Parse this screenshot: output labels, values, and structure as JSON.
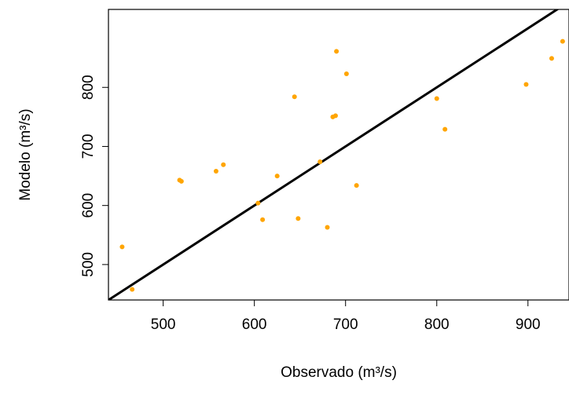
{
  "chart_data": {
    "type": "scatter",
    "title": "",
    "xlabel": "Observado (m³/s)",
    "ylabel": "Modelo (m³/s)",
    "xlim": [
      440,
      945
    ],
    "ylim": [
      440,
      932
    ],
    "x_ticks": [
      500,
      600,
      700,
      800,
      900
    ],
    "y_ticks": [
      500,
      600,
      700,
      800
    ],
    "grid": false,
    "legend": "none",
    "point_color": "#ffa500",
    "line_color": "#000000",
    "reference_line": {
      "slope": 1,
      "intercept": 0
    },
    "points": [
      {
        "x": 455,
        "y": 530
      },
      {
        "x": 466,
        "y": 458
      },
      {
        "x": 518,
        "y": 643
      },
      {
        "x": 520,
        "y": 641
      },
      {
        "x": 558,
        "y": 658
      },
      {
        "x": 566,
        "y": 669
      },
      {
        "x": 604,
        "y": 604
      },
      {
        "x": 609,
        "y": 576
      },
      {
        "x": 625,
        "y": 650
      },
      {
        "x": 644,
        "y": 784
      },
      {
        "x": 648,
        "y": 578
      },
      {
        "x": 672,
        "y": 674
      },
      {
        "x": 680,
        "y": 563
      },
      {
        "x": 686,
        "y": 750
      },
      {
        "x": 689,
        "y": 752
      },
      {
        "x": 690,
        "y": 861
      },
      {
        "x": 701,
        "y": 823
      },
      {
        "x": 712,
        "y": 634
      },
      {
        "x": 800,
        "y": 781
      },
      {
        "x": 809,
        "y": 729
      },
      {
        "x": 898,
        "y": 805
      },
      {
        "x": 926,
        "y": 849
      },
      {
        "x": 938,
        "y": 878
      }
    ]
  }
}
